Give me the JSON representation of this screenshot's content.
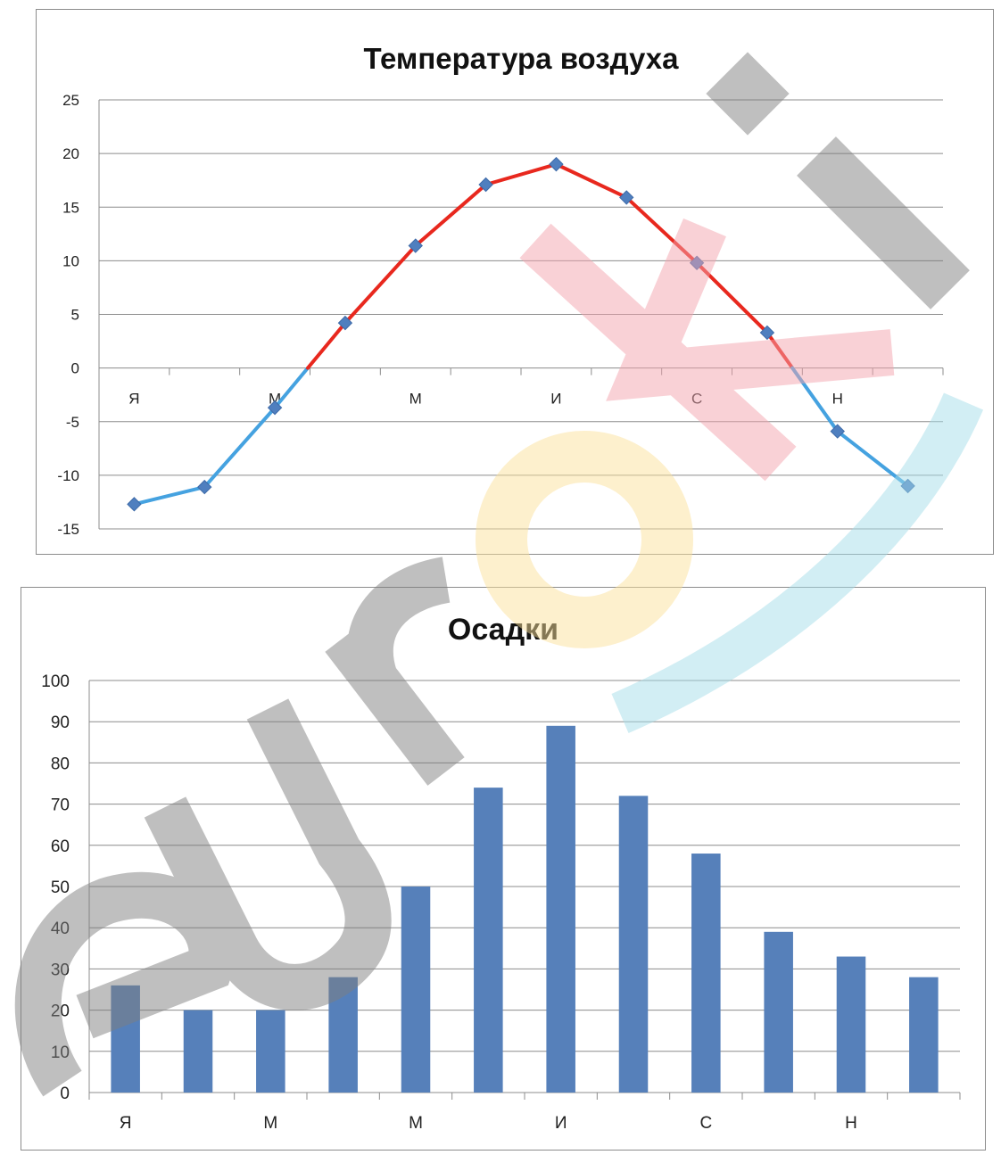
{
  "colors": {
    "temp_warm": "#e8281e",
    "temp_cold": "#45a2e0",
    "marker": "#4f7fbf",
    "bar": "#5680ba",
    "grid": "#8c8c8c",
    "watermark_gray": "#7f7f7f",
    "watermark_pink": "#f2a3ad",
    "watermark_yellow": "#fbe09a",
    "watermark_cyan": "#a5dde8"
  },
  "watermark": {
    "text": "euroki"
  },
  "chart_data": [
    {
      "type": "line",
      "title": "Температура воздуха",
      "x": [
        "Я",
        "",
        "М",
        "",
        "М",
        "",
        "И",
        "",
        "С",
        "",
        "Н",
        ""
      ],
      "xlabel": "",
      "ylabel": "",
      "yticks": [
        "25",
        "20",
        "15",
        "10",
        "5",
        "0",
        "-5",
        "-10",
        "-15"
      ],
      "ylim": [
        -15,
        25
      ],
      "grid": true,
      "legend": "none",
      "series": [
        {
          "values": [
            -12.7,
            -11.1,
            -3.7,
            4.2,
            11.4,
            17.1,
            19.0,
            15.9,
            9.8,
            3.3,
            -5.9,
            -11.0
          ]
        }
      ],
      "line_color_rule": "red above 0, blue below 0"
    },
    {
      "type": "bar",
      "title": "Осадки",
      "categories": [
        "Я",
        "",
        "М",
        "",
        "М",
        "",
        "И",
        "",
        "С",
        "",
        "Н",
        ""
      ],
      "values": [
        26,
        20,
        20,
        28,
        50,
        74,
        89,
        72,
        58,
        39,
        33,
        28
      ],
      "xlabel": "",
      "ylabel": "",
      "yticks": [
        "100",
        "90",
        "80",
        "70",
        "60",
        "50",
        "40",
        "30",
        "20",
        "10",
        "0"
      ],
      "ylim": [
        0,
        100
      ],
      "grid": true,
      "legend": "none"
    }
  ]
}
